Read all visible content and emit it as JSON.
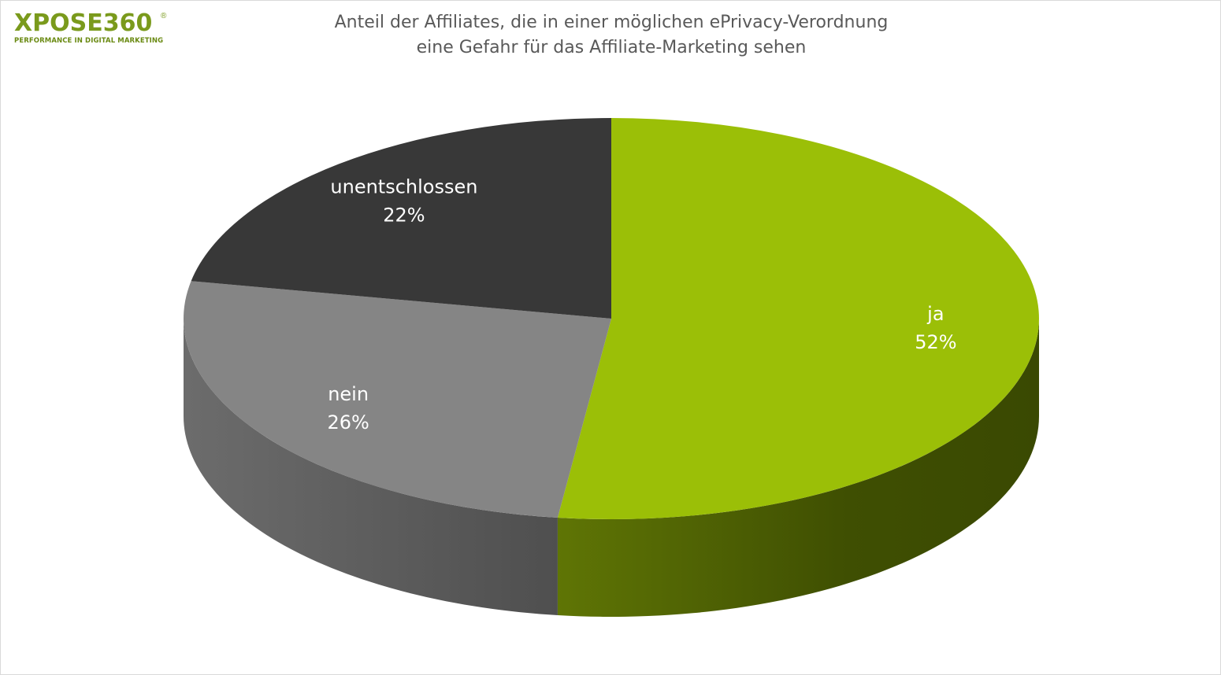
{
  "logo": {
    "wordmark": "XPOSE360",
    "registered": "®",
    "tagline": "PERFORMANCE IN DIGITAL MARKETING"
  },
  "chart_data": {
    "type": "pie",
    "title": "Anteil der Affiliates, die in einer möglichen ePrivacy-Verordnung eine Gefahr für das Affiliate-Marketing sehen",
    "title_lines": [
      "Anteil der Affiliates,  die in einer möglichen ePrivacy-Verordnung",
      "eine Gefahr für das Affiliate-Marketing sehen"
    ],
    "style": "3d",
    "legend": "none",
    "slices": [
      {
        "label": "ja",
        "value": 52,
        "value_label": "52%",
        "color": "#9bbf07",
        "side_color": "#4a5c02"
      },
      {
        "label": "nein",
        "value": 26,
        "value_label": "26%",
        "color": "#858585",
        "side_color": "#5e5e5e"
      },
      {
        "label": "unentschlossen",
        "value": 22,
        "value_label": "22%",
        "color": "#383838",
        "side_color": "#262626"
      }
    ]
  }
}
